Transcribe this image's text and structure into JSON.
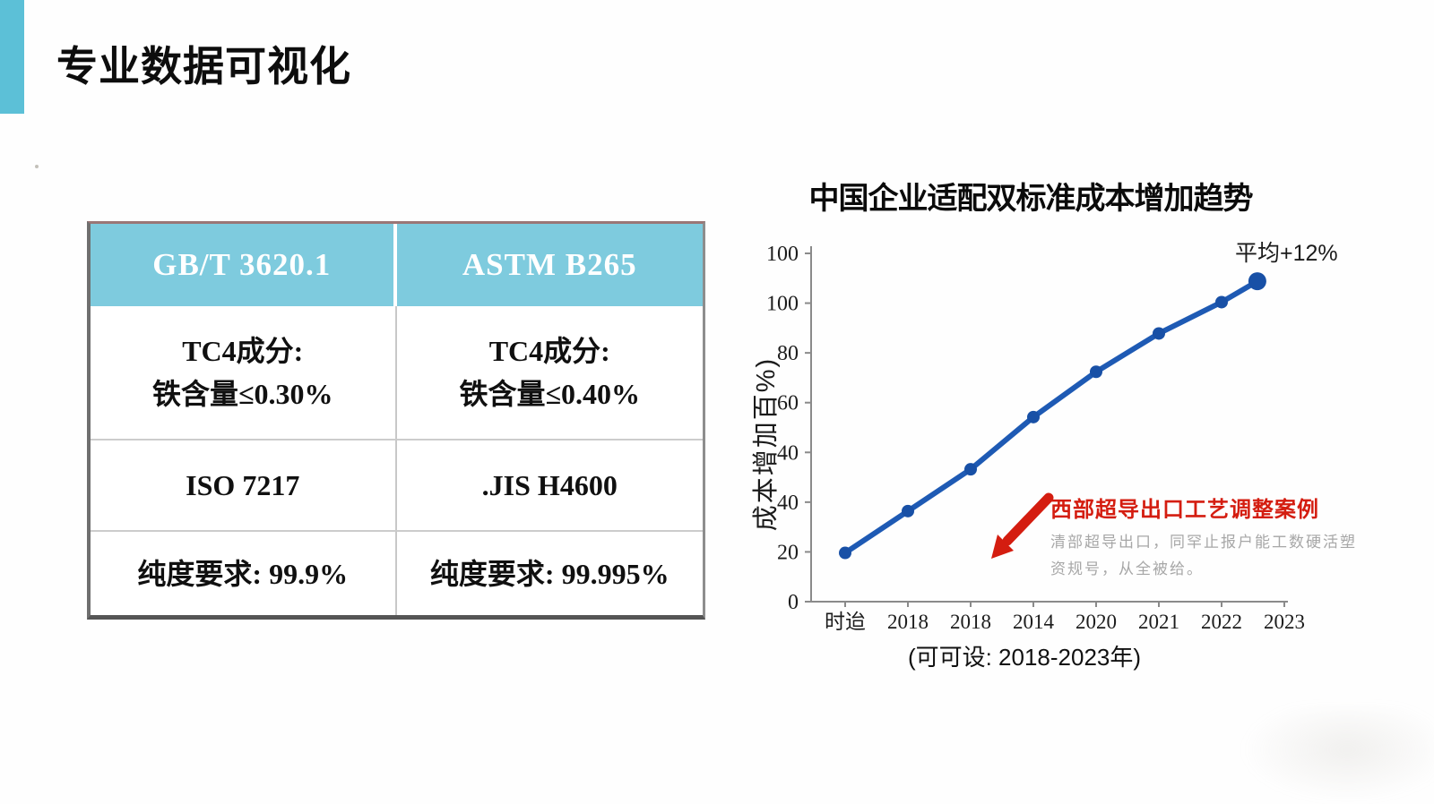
{
  "page": {
    "title": "专业数据可视化"
  },
  "table": {
    "columns": [
      "GB/T 3620.1",
      "ASTM B265"
    ],
    "rows": [
      [
        [
          "TC4成分:",
          "铁含量≤0.30%"
        ],
        [
          "TC4成分:",
          "铁含量≤0.40%"
        ]
      ],
      [
        [
          "ISO 7217"
        ],
        [
          ".JIS H4600"
        ]
      ],
      [
        [
          "纯度要求: 99.9%"
        ],
        [
          "纯度要求: 99.995%"
        ]
      ]
    ],
    "header_bg": "#7ecbde",
    "header_text_color": "#ffffff"
  },
  "chart_data": {
    "type": "line",
    "title": "中国企业适配双标准成本增加趋势",
    "ylabel": "成本增加百%)",
    "caption": "(可可设: 2018-2023年)",
    "categories": [
      "时迨",
      "2018",
      "2018",
      "2014",
      "2020",
      "2021",
      "2022",
      "2023"
    ],
    "values": [
      14,
      26,
      38,
      53,
      66,
      77,
      86,
      92
    ],
    "point_tick_positions": [
      0,
      1,
      2,
      3,
      4,
      5,
      6,
      6.57
    ],
    "y_tick_labels": [
      "100",
      "100",
      "80",
      "60",
      "40",
      "40",
      "20",
      "0"
    ],
    "ylim": [
      0,
      100
    ],
    "grid": false,
    "legend": "none",
    "avg_annotation": "平均+12%",
    "callout": {
      "title": "西部超导出口工艺调整案例",
      "line1": "清部超导出口，同罕止报户能工数硬活塑",
      "line2": "资规号，从全被给。"
    },
    "colors": {
      "line": "#1e5ab4",
      "point": "#1850a6",
      "axis": "#8a8a8a",
      "tick_text": "#1c1c1c",
      "arrow_red": "#d41d10"
    }
  },
  "decor": {
    "accent_color": "#5cc0d7"
  }
}
